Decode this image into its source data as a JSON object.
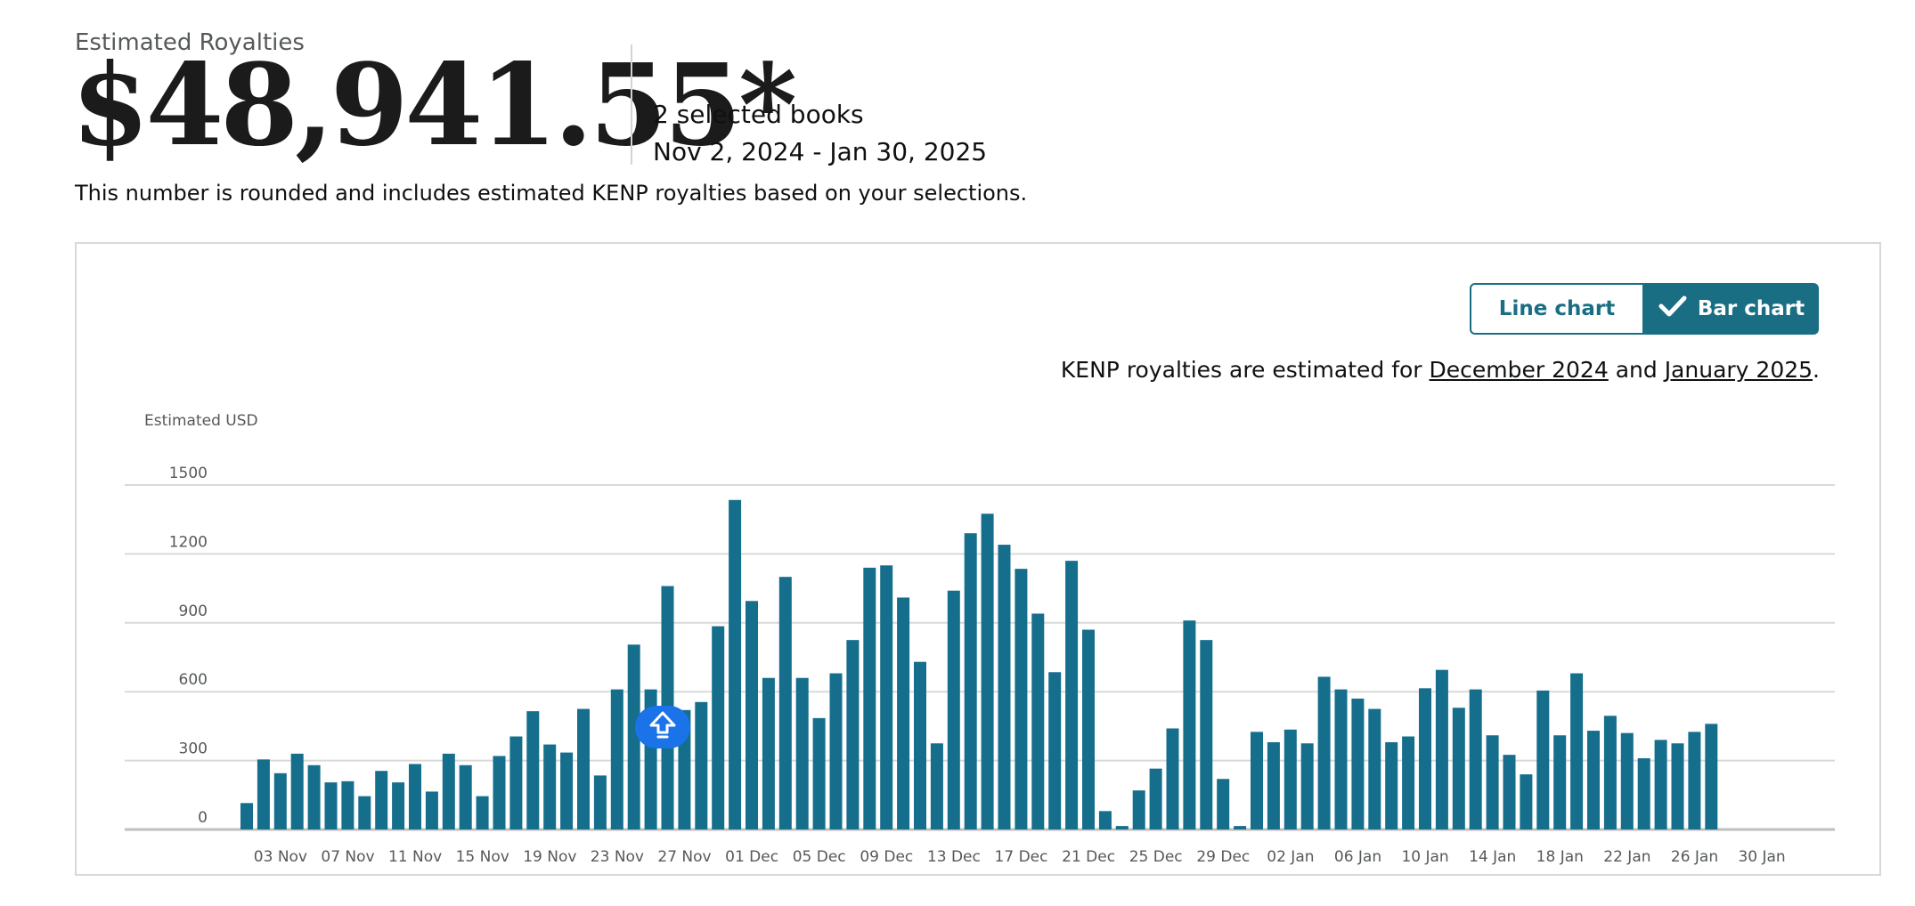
{
  "summary": {
    "label": "Estimated Royalties",
    "amount": "$48,941.55*",
    "selected_books": "2 selected books",
    "date_range": "Nov 2, 2024 - Jan 30, 2025",
    "disclaimer": "This number is rounded and includes estimated KENP royalties based on your selections."
  },
  "chart_toggle": {
    "line_label": "Line chart",
    "bar_label": "Bar chart",
    "selected": "bar"
  },
  "kenp_note": {
    "prefix": "KENP royalties are estimated for ",
    "link1": "December 2024",
    "middle": " and ",
    "link2": "January 2025",
    "suffix": "."
  },
  "colors": {
    "bar": "#156e8c",
    "accent": "#1a6e84",
    "grid": "#d9d9d9",
    "marker": "#1a73e8"
  },
  "icons": [
    "check-icon",
    "arrow-up-icon"
  ],
  "chart_data": {
    "type": "bar",
    "ylabel": "Estimated USD",
    "ylim": [
      0,
      1500
    ],
    "yticks": [
      0,
      300,
      600,
      900,
      1200,
      1500
    ],
    "grid": true,
    "x_start": "2024-11-02",
    "xtick_labels": [
      "03 Nov",
      "07 Nov",
      "11 Nov",
      "15 Nov",
      "19 Nov",
      "23 Nov",
      "27 Nov",
      "01 Dec",
      "05 Dec",
      "09 Dec",
      "13 Dec",
      "17 Dec",
      "21 Dec",
      "25 Dec",
      "29 Dec",
      "02 Jan",
      "06 Jan",
      "10 Jan",
      "14 Jan",
      "18 Jan",
      "22 Jan",
      "26 Jan",
      "30 Jan"
    ],
    "values": [
      115,
      305,
      245,
      330,
      280,
      205,
      210,
      145,
      255,
      205,
      285,
      165,
      330,
      280,
      145,
      320,
      405,
      515,
      370,
      335,
      525,
      235,
      610,
      805,
      610,
      1060,
      520,
      555,
      885,
      1435,
      995,
      660,
      1100,
      660,
      485,
      680,
      825,
      1140,
      1150,
      1010,
      730,
      375,
      1040,
      1290,
      1375,
      1240,
      1135,
      940,
      685,
      1170,
      870,
      80,
      15,
      170,
      265,
      440,
      910,
      825,
      220,
      15,
      425,
      380,
      435,
      375,
      665,
      610,
      570,
      525,
      380,
      405,
      615,
      695,
      530,
      610,
      410,
      325,
      240,
      605,
      410,
      680,
      430,
      495,
      420,
      310,
      390,
      375,
      425,
      460
    ]
  }
}
